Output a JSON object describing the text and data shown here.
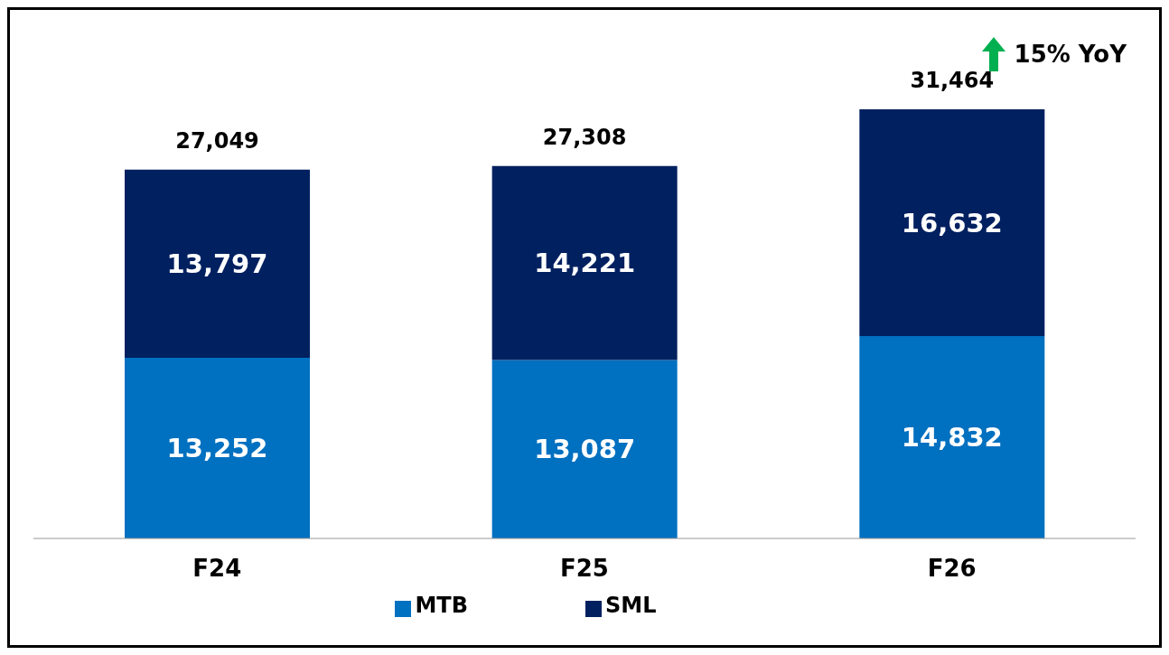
{
  "chart_data": {
    "type": "bar",
    "stacked": true,
    "categories": [
      "F24",
      "F25",
      "F26"
    ],
    "series": [
      {
        "name": "MTB",
        "color": "#0070c0",
        "values": [
          13252,
          13087,
          14832
        ],
        "value_labels": [
          "13,252",
          "13,087",
          "14,832"
        ]
      },
      {
        "name": "SML",
        "color": "#002060",
        "values": [
          13797,
          14221,
          16632
        ],
        "value_labels": [
          "13,797",
          "14,221",
          "16,632"
        ]
      }
    ],
    "totals": [
      "27,049",
      "27,308",
      "31,464"
    ],
    "annotations": [
      "15% YoY"
    ],
    "legend": "bottom"
  }
}
